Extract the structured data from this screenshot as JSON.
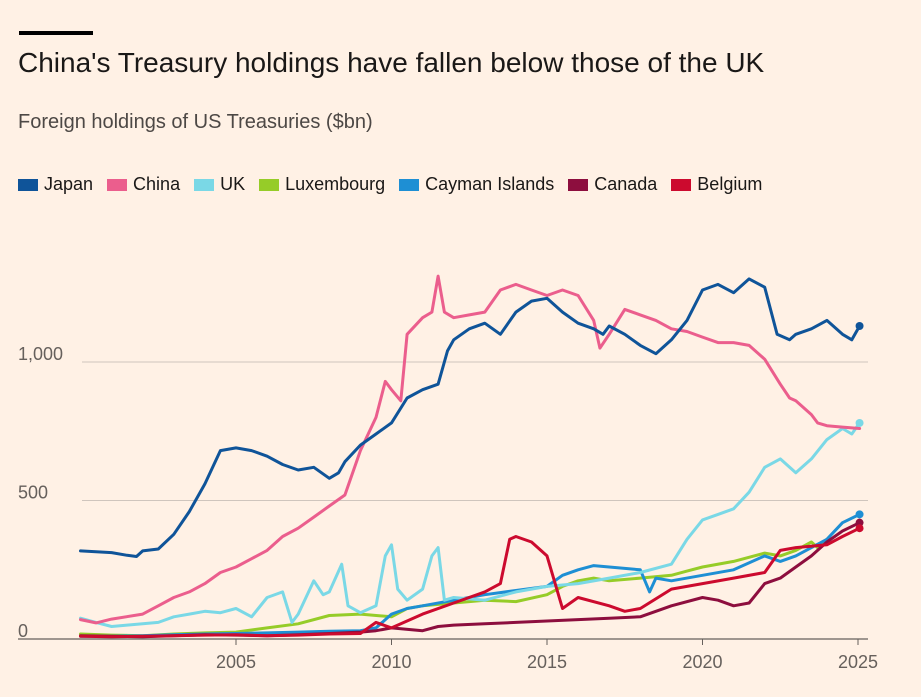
{
  "header": {
    "title": "China's Treasury holdings have fallen below those of the UK",
    "subtitle": "Foreign holdings of US Treasuries ($bn)"
  },
  "chart_data": {
    "type": "line",
    "title": "China's Treasury holdings have fallen below those of the UK",
    "subtitle": "Foreign holdings of US Treasuries ($bn)",
    "xlabel": "",
    "ylabel": "",
    "xlim": [
      2000,
      2025.3
    ],
    "ylim": [
      0,
      1400
    ],
    "x_ticks": [
      2005,
      2010,
      2015,
      2020,
      2025
    ],
    "x_tick_labels": [
      "2005",
      "2010",
      "2015",
      "2020",
      "2025"
    ],
    "y_ticks": [
      0,
      500,
      1000
    ],
    "y_tick_labels": [
      "0",
      "500",
      "1,000"
    ],
    "grid": "horizontal",
    "legend_position": "top",
    "series": [
      {
        "name": "Japan",
        "color": "#0f5499",
        "end_marker": true,
        "points": [
          [
            2000.0,
            318
          ],
          [
            2001.0,
            312
          ],
          [
            2001.5,
            302
          ],
          [
            2001.8,
            298
          ],
          [
            2002.0,
            318
          ],
          [
            2002.5,
            325
          ],
          [
            2003.0,
            378
          ],
          [
            2003.5,
            460
          ],
          [
            2004.0,
            560
          ],
          [
            2004.5,
            680
          ],
          [
            2005.0,
            690
          ],
          [
            2005.5,
            680
          ],
          [
            2006.0,
            660
          ],
          [
            2006.5,
            630
          ],
          [
            2007.0,
            610
          ],
          [
            2007.5,
            620
          ],
          [
            2008.0,
            580
          ],
          [
            2008.3,
            600
          ],
          [
            2008.5,
            640
          ],
          [
            2009.0,
            700
          ],
          [
            2009.5,
            740
          ],
          [
            2010.0,
            780
          ],
          [
            2010.5,
            870
          ],
          [
            2011.0,
            900
          ],
          [
            2011.5,
            920
          ],
          [
            2011.8,
            1040
          ],
          [
            2012.0,
            1080
          ],
          [
            2012.5,
            1120
          ],
          [
            2013.0,
            1140
          ],
          [
            2013.5,
            1100
          ],
          [
            2014.0,
            1180
          ],
          [
            2014.5,
            1220
          ],
          [
            2015.0,
            1230
          ],
          [
            2015.5,
            1180
          ],
          [
            2016.0,
            1140
          ],
          [
            2016.5,
            1120
          ],
          [
            2016.8,
            1100
          ],
          [
            2017.0,
            1130
          ],
          [
            2017.5,
            1100
          ],
          [
            2018.0,
            1060
          ],
          [
            2018.5,
            1030
          ],
          [
            2019.0,
            1080
          ],
          [
            2019.5,
            1150
          ],
          [
            2020.0,
            1260
          ],
          [
            2020.5,
            1280
          ],
          [
            2021.0,
            1250
          ],
          [
            2021.5,
            1300
          ],
          [
            2022.0,
            1270
          ],
          [
            2022.4,
            1100
          ],
          [
            2022.8,
            1080
          ],
          [
            2023.0,
            1100
          ],
          [
            2023.5,
            1120
          ],
          [
            2024.0,
            1150
          ],
          [
            2024.5,
            1100
          ],
          [
            2024.8,
            1080
          ],
          [
            2025.05,
            1130
          ]
        ]
      },
      {
        "name": "China",
        "color": "#eb5e8d",
        "end_marker": false,
        "points": [
          [
            2000.0,
            70
          ],
          [
            2000.5,
            58
          ],
          [
            2001.0,
            72
          ],
          [
            2002.0,
            90
          ],
          [
            2002.5,
            120
          ],
          [
            2003.0,
            150
          ],
          [
            2003.5,
            170
          ],
          [
            2004.0,
            200
          ],
          [
            2004.5,
            240
          ],
          [
            2005.0,
            260
          ],
          [
            2005.5,
            290
          ],
          [
            2006.0,
            320
          ],
          [
            2006.5,
            370
          ],
          [
            2007.0,
            400
          ],
          [
            2007.5,
            440
          ],
          [
            2008.0,
            480
          ],
          [
            2008.5,
            520
          ],
          [
            2009.0,
            680
          ],
          [
            2009.5,
            800
          ],
          [
            2009.8,
            930
          ],
          [
            2010.0,
            900
          ],
          [
            2010.3,
            860
          ],
          [
            2010.5,
            1100
          ],
          [
            2011.0,
            1160
          ],
          [
            2011.3,
            1180
          ],
          [
            2011.5,
            1310
          ],
          [
            2011.7,
            1180
          ],
          [
            2012.0,
            1160
          ],
          [
            2012.5,
            1170
          ],
          [
            2013.0,
            1180
          ],
          [
            2013.5,
            1260
          ],
          [
            2014.0,
            1280
          ],
          [
            2014.5,
            1260
          ],
          [
            2015.0,
            1240
          ],
          [
            2015.5,
            1260
          ],
          [
            2016.0,
            1240
          ],
          [
            2016.5,
            1150
          ],
          [
            2016.7,
            1050
          ],
          [
            2017.0,
            1100
          ],
          [
            2017.5,
            1190
          ],
          [
            2018.0,
            1170
          ],
          [
            2018.5,
            1150
          ],
          [
            2019.0,
            1120
          ],
          [
            2019.5,
            1110
          ],
          [
            2020.0,
            1090
          ],
          [
            2020.5,
            1070
          ],
          [
            2021.0,
            1070
          ],
          [
            2021.5,
            1060
          ],
          [
            2022.0,
            1010
          ],
          [
            2022.5,
            920
          ],
          [
            2022.8,
            870
          ],
          [
            2023.0,
            860
          ],
          [
            2023.5,
            810
          ],
          [
            2023.7,
            780
          ],
          [
            2024.0,
            770
          ],
          [
            2024.5,
            765
          ],
          [
            2025.05,
            760
          ]
        ]
      },
      {
        "name": "UK",
        "color": "#7ad8e6",
        "end_marker": true,
        "points": [
          [
            2000.0,
            75
          ],
          [
            2000.5,
            60
          ],
          [
            2001.0,
            45
          ],
          [
            2001.5,
            50
          ],
          [
            2002.0,
            55
          ],
          [
            2002.5,
            60
          ],
          [
            2003.0,
            80
          ],
          [
            2003.5,
            90
          ],
          [
            2004.0,
            100
          ],
          [
            2004.5,
            95
          ],
          [
            2005.0,
            110
          ],
          [
            2005.5,
            80
          ],
          [
            2006.0,
            150
          ],
          [
            2006.5,
            170
          ],
          [
            2006.8,
            60
          ],
          [
            2007.0,
            90
          ],
          [
            2007.5,
            210
          ],
          [
            2007.8,
            160
          ],
          [
            2008.0,
            170
          ],
          [
            2008.4,
            270
          ],
          [
            2008.6,
            120
          ],
          [
            2009.0,
            95
          ],
          [
            2009.5,
            120
          ],
          [
            2009.8,
            300
          ],
          [
            2010.0,
            340
          ],
          [
            2010.2,
            180
          ],
          [
            2010.5,
            140
          ],
          [
            2011.0,
            180
          ],
          [
            2011.3,
            300
          ],
          [
            2011.5,
            330
          ],
          [
            2011.7,
            140
          ],
          [
            2012.0,
            150
          ],
          [
            2013.0,
            140
          ],
          [
            2014.0,
            170
          ],
          [
            2015.0,
            190
          ],
          [
            2016.0,
            200
          ],
          [
            2017.0,
            220
          ],
          [
            2018.0,
            240
          ],
          [
            2019.0,
            270
          ],
          [
            2019.5,
            360
          ],
          [
            2020.0,
            430
          ],
          [
            2020.5,
            450
          ],
          [
            2021.0,
            470
          ],
          [
            2021.5,
            530
          ],
          [
            2022.0,
            620
          ],
          [
            2022.5,
            650
          ],
          [
            2023.0,
            600
          ],
          [
            2023.5,
            650
          ],
          [
            2024.0,
            720
          ],
          [
            2024.5,
            760
          ],
          [
            2024.8,
            740
          ],
          [
            2025.05,
            780
          ]
        ]
      },
      {
        "name": "Luxembourg",
        "color": "#96cc28",
        "end_marker": false,
        "points": [
          [
            2000.0,
            18
          ],
          [
            2001.0,
            14
          ],
          [
            2002.0,
            12
          ],
          [
            2003.0,
            18
          ],
          [
            2004.0,
            22
          ],
          [
            2005.0,
            25
          ],
          [
            2006.0,
            40
          ],
          [
            2007.0,
            55
          ],
          [
            2008.0,
            85
          ],
          [
            2009.0,
            90
          ],
          [
            2010.0,
            80
          ],
          [
            2010.5,
            110
          ],
          [
            2011.0,
            120
          ],
          [
            2012.0,
            130
          ],
          [
            2013.0,
            140
          ],
          [
            2014.0,
            135
          ],
          [
            2015.0,
            160
          ],
          [
            2015.5,
            190
          ],
          [
            2016.0,
            210
          ],
          [
            2016.5,
            220
          ],
          [
            2017.0,
            210
          ],
          [
            2018.0,
            220
          ],
          [
            2019.0,
            230
          ],
          [
            2019.5,
            245
          ],
          [
            2020.0,
            260
          ],
          [
            2021.0,
            280
          ],
          [
            2022.0,
            310
          ],
          [
            2022.5,
            300
          ],
          [
            2023.0,
            320
          ],
          [
            2023.5,
            350
          ],
          [
            2023.7,
            330
          ],
          [
            2024.0,
            360
          ]
        ]
      },
      {
        "name": "Cayman Islands",
        "color": "#1e8fd4",
        "end_marker": true,
        "points": [
          [
            2000.0,
            10
          ],
          [
            2001.0,
            10
          ],
          [
            2002.0,
            12
          ],
          [
            2003.0,
            15
          ],
          [
            2004.0,
            18
          ],
          [
            2005.0,
            20
          ],
          [
            2006.0,
            22
          ],
          [
            2007.0,
            25
          ],
          [
            2008.0,
            28
          ],
          [
            2009.0,
            30
          ],
          [
            2009.5,
            40
          ],
          [
            2010.0,
            90
          ],
          [
            2010.5,
            110
          ],
          [
            2011.0,
            120
          ],
          [
            2012.0,
            140
          ],
          [
            2013.0,
            160
          ],
          [
            2014.0,
            175
          ],
          [
            2015.0,
            190
          ],
          [
            2015.5,
            230
          ],
          [
            2016.0,
            250
          ],
          [
            2016.5,
            265
          ],
          [
            2017.0,
            260
          ],
          [
            2018.0,
            250
          ],
          [
            2018.3,
            170
          ],
          [
            2018.5,
            220
          ],
          [
            2019.0,
            210
          ],
          [
            2020.0,
            230
          ],
          [
            2021.0,
            250
          ],
          [
            2022.0,
            300
          ],
          [
            2022.5,
            280
          ],
          [
            2023.0,
            300
          ],
          [
            2024.0,
            360
          ],
          [
            2024.5,
            420
          ],
          [
            2025.05,
            450
          ]
        ]
      },
      {
        "name": "Canada",
        "color": "#8d0e3e",
        "end_marker": true,
        "points": [
          [
            2000.0,
            12
          ],
          [
            2001.0,
            10
          ],
          [
            2002.0,
            8
          ],
          [
            2003.0,
            12
          ],
          [
            2004.0,
            15
          ],
          [
            2005.0,
            14
          ],
          [
            2006.0,
            12
          ],
          [
            2007.0,
            15
          ],
          [
            2008.0,
            20
          ],
          [
            2009.0,
            25
          ],
          [
            2009.5,
            30
          ],
          [
            2010.0,
            40
          ],
          [
            2011.0,
            30
          ],
          [
            2011.5,
            45
          ],
          [
            2012.0,
            50
          ],
          [
            2013.0,
            55
          ],
          [
            2014.0,
            60
          ],
          [
            2015.0,
            65
          ],
          [
            2016.0,
            70
          ],
          [
            2017.0,
            75
          ],
          [
            2018.0,
            80
          ],
          [
            2018.5,
            100
          ],
          [
            2019.0,
            120
          ],
          [
            2020.0,
            150
          ],
          [
            2020.5,
            140
          ],
          [
            2021.0,
            120
          ],
          [
            2021.5,
            130
          ],
          [
            2022.0,
            200
          ],
          [
            2022.5,
            220
          ],
          [
            2023.0,
            260
          ],
          [
            2023.5,
            300
          ],
          [
            2024.0,
            350
          ],
          [
            2024.5,
            390
          ],
          [
            2025.05,
            420
          ]
        ]
      },
      {
        "name": "Belgium",
        "color": "#cc0a2e",
        "end_marker": true,
        "points": [
          [
            2000.0,
            10
          ],
          [
            2001.0,
            8
          ],
          [
            2002.0,
            10
          ],
          [
            2003.0,
            12
          ],
          [
            2004.0,
            14
          ],
          [
            2005.0,
            15
          ],
          [
            2006.0,
            12
          ],
          [
            2007.0,
            14
          ],
          [
            2008.0,
            18
          ],
          [
            2009.0,
            20
          ],
          [
            2009.5,
            60
          ],
          [
            2010.0,
            40
          ],
          [
            2011.0,
            90
          ],
          [
            2012.0,
            130
          ],
          [
            2013.0,
            170
          ],
          [
            2013.5,
            200
          ],
          [
            2013.8,
            360
          ],
          [
            2014.0,
            370
          ],
          [
            2014.5,
            350
          ],
          [
            2015.0,
            300
          ],
          [
            2015.5,
            110
          ],
          [
            2016.0,
            150
          ],
          [
            2017.0,
            120
          ],
          [
            2017.5,
            100
          ],
          [
            2018.0,
            110
          ],
          [
            2019.0,
            180
          ],
          [
            2020.0,
            200
          ],
          [
            2021.0,
            220
          ],
          [
            2022.0,
            240
          ],
          [
            2022.5,
            320
          ],
          [
            2023.0,
            330
          ],
          [
            2024.0,
            340
          ],
          [
            2024.5,
            370
          ],
          [
            2025.05,
            400
          ]
        ]
      }
    ]
  }
}
